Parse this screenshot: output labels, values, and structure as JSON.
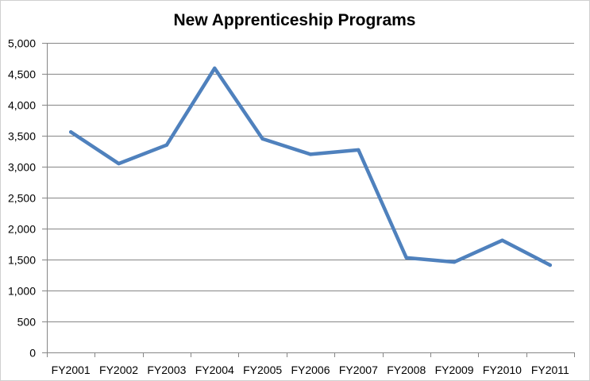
{
  "chart_data": {
    "type": "line",
    "title": "New Apprenticeship Programs",
    "xlabel": "",
    "ylabel": "",
    "categories": [
      "FY2001",
      "FY2002",
      "FY2003",
      "FY2004",
      "FY2005",
      "FY2006",
      "FY2007",
      "FY2008",
      "FY2009",
      "FY2010",
      "FY2011"
    ],
    "series": [
      {
        "values": [
          3560,
          3050,
          3350,
          4590,
          3450,
          3200,
          3270,
          1530,
          1460,
          1810,
          1410
        ],
        "color": "#4f81bd"
      }
    ],
    "ylim": [
      0,
      5000
    ],
    "yticks": [
      0,
      500,
      1000,
      1500,
      2000,
      2500,
      3000,
      3500,
      4000,
      4500,
      5000
    ],
    "ytick_labels": [
      "0",
      "500",
      "1,000",
      "1,500",
      "2,000",
      "2,500",
      "3,000",
      "3,500",
      "4,000",
      "4,500",
      "5,000"
    ],
    "grid": true,
    "legend": "none",
    "colors": {
      "line": "#4f81bd",
      "grid": "#868686",
      "background": "#ffffff"
    }
  }
}
